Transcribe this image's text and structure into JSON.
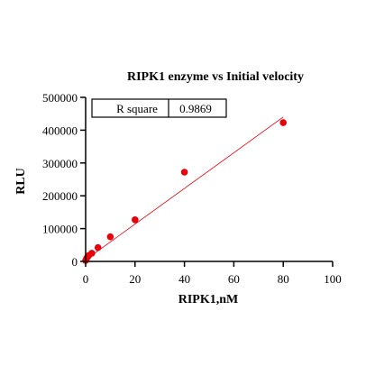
{
  "chart_data": {
    "type": "scatter",
    "title": "RIPK1 enzyme vs Initial velocity",
    "xlabel": "RIPK1,nM",
    "ylabel": "RLU",
    "xlim": [
      0,
      100
    ],
    "ylim": [
      0,
      500000
    ],
    "x_ticks": [
      0,
      20,
      40,
      60,
      80,
      100
    ],
    "y_ticks": [
      0,
      100000,
      200000,
      300000,
      400000,
      500000
    ],
    "x_tick_labels": [
      "0",
      "20",
      "40",
      "60",
      "80",
      "100"
    ],
    "y_tick_labels": [
      "0",
      "100000",
      "200000",
      "300000",
      "400000",
      "500000"
    ],
    "grid": false,
    "series": [
      {
        "color": "#e8000b",
        "x": [
          0,
          0.3125,
          0.625,
          1.25,
          2.5,
          5,
          10,
          20,
          40,
          80
        ],
        "y": [
          3000,
          8000,
          12000,
          18000,
          25000,
          42000,
          75000,
          127000,
          272000,
          423000
        ]
      }
    ],
    "fit_line": {
      "color": "#e8000b",
      "x": [
        0,
        80
      ],
      "y": [
        5000,
        440000
      ]
    },
    "annotation": {
      "label": "R square",
      "value": "0.9869"
    }
  }
}
